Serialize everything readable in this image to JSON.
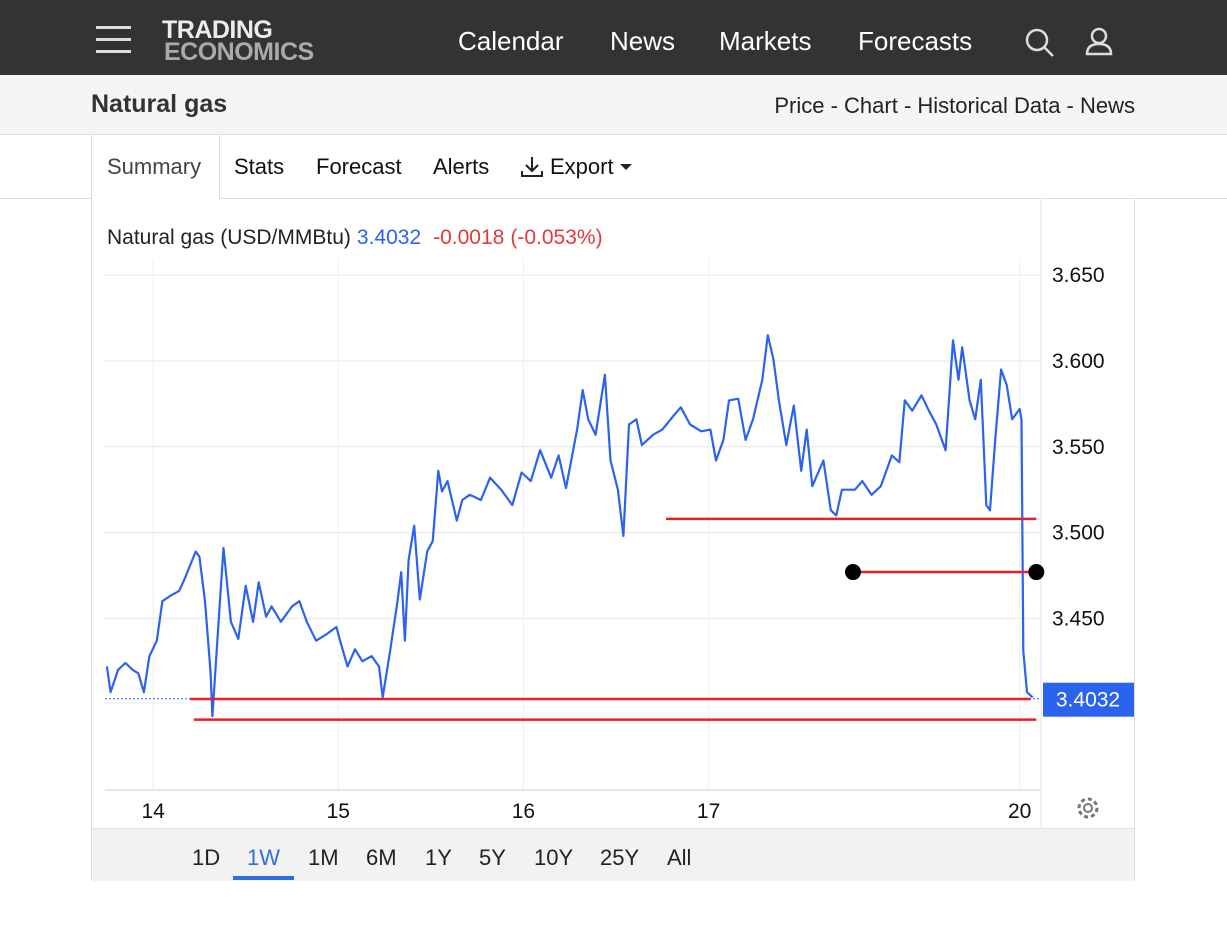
{
  "nav": {
    "logo": [
      "TRADING",
      "ECONOMICS"
    ],
    "links": [
      "Calendar",
      "News",
      "Markets",
      "Forecasts"
    ]
  },
  "header": {
    "title": "Natural gas",
    "links": "Price - Chart - Historical Data - News"
  },
  "tabs": [
    "Summary",
    "Stats",
    "Forecast",
    "Alerts",
    "Export"
  ],
  "ranges": [
    "1D",
    "1W",
    "1M",
    "6M",
    "1Y",
    "5Y",
    "10Y",
    "25Y",
    "All"
  ],
  "selected_range": "1W",
  "chart_data": {
    "type": "line",
    "title": "Natural gas (USD/MMBtu)",
    "last": 3.4032,
    "change": -0.0018,
    "change_pct": "(-0.053%)",
    "color": "#2b62ee",
    "change_color": "#e5383b",
    "xlim": [
      -0.26,
      4.79
    ],
    "ylim": [
      3.35,
      3.66
    ],
    "xticks": [
      {
        "value": 0,
        "label": "14"
      },
      {
        "value": 1,
        "label": "15"
      },
      {
        "value": 2,
        "label": "16"
      },
      {
        "value": 3,
        "label": "17"
      },
      {
        "value": 4.68,
        "label": "20"
      }
    ],
    "yticks": [
      {
        "value": 3.45,
        "label": "3.450"
      },
      {
        "value": 3.5,
        "label": "3.500"
      },
      {
        "value": 3.55,
        "label": "3.550"
      },
      {
        "value": 3.6,
        "label": "3.600"
      },
      {
        "value": 3.65,
        "label": "3.650"
      }
    ],
    "grid": true,
    "x": [
      -0.25,
      -0.23,
      -0.19,
      -0.15,
      -0.11,
      -0.08,
      -0.05,
      -0.02,
      0.02,
      0.05,
      0.09,
      0.14,
      0.17,
      0.23,
      0.25,
      0.28,
      0.31,
      0.32,
      0.35,
      0.38,
      0.42,
      0.46,
      0.5,
      0.54,
      0.57,
      0.61,
      0.64,
      0.69,
      0.75,
      0.79,
      0.83,
      0.88,
      0.94,
      0.99,
      1.01,
      1.05,
      1.09,
      1.13,
      1.18,
      1.22,
      1.24,
      1.28,
      1.32,
      1.34,
      1.36,
      1.38,
      1.41,
      1.44,
      1.48,
      1.51,
      1.54,
      1.56,
      1.59,
      1.64,
      1.67,
      1.71,
      1.77,
      1.82,
      1.88,
      1.94,
      1.99,
      2.04,
      2.09,
      2.15,
      2.19,
      2.23,
      2.29,
      2.32,
      2.35,
      2.39,
      2.44,
      2.47,
      2.51,
      2.54,
      2.57,
      2.61,
      2.64,
      2.7,
      2.75,
      2.81,
      2.85,
      2.9,
      2.96,
      3.01,
      3.04,
      3.08,
      3.11,
      3.16,
      3.2,
      3.24,
      3.29,
      3.32,
      3.35,
      3.38,
      3.42,
      3.46,
      3.5,
      3.53,
      3.56,
      3.62,
      3.66,
      3.69,
      3.72,
      3.79,
      3.83,
      3.88,
      3.93,
      3.99,
      4.03,
      4.06,
      4.1,
      4.15,
      4.19,
      4.23,
      4.28,
      4.32,
      4.35,
      4.37,
      4.41,
      4.44,
      4.47,
      4.5,
      4.52,
      4.55,
      4.58,
      4.61,
      4.64,
      4.68,
      4.69,
      4.7,
      4.72,
      4.75
    ],
    "values": [
      3.422,
      3.407,
      3.42,
      3.424,
      3.42,
      3.418,
      3.407,
      3.428,
      3.437,
      3.46,
      3.463,
      3.466,
      3.473,
      3.489,
      3.486,
      3.46,
      3.419,
      3.393,
      3.442,
      3.491,
      3.448,
      3.438,
      3.469,
      3.448,
      3.471,
      3.451,
      3.457,
      3.448,
      3.457,
      3.46,
      3.448,
      3.437,
      3.441,
      3.445,
      3.437,
      3.422,
      3.432,
      3.425,
      3.428,
      3.422,
      3.404,
      3.431,
      3.46,
      3.477,
      3.437,
      3.484,
      3.504,
      3.461,
      3.489,
      3.495,
      3.536,
      3.524,
      3.53,
      3.507,
      3.519,
      3.522,
      3.519,
      3.532,
      3.525,
      3.516,
      3.535,
      3.53,
      3.548,
      3.532,
      3.545,
      3.526,
      3.56,
      3.583,
      3.566,
      3.557,
      3.592,
      3.542,
      3.525,
      3.498,
      3.563,
      3.566,
      3.551,
      3.557,
      3.56,
      3.568,
      3.573,
      3.563,
      3.559,
      3.56,
      3.542,
      3.554,
      3.577,
      3.578,
      3.554,
      3.566,
      3.589,
      3.615,
      3.601,
      3.577,
      3.551,
      3.574,
      3.536,
      3.56,
      3.527,
      3.542,
      3.513,
      3.51,
      3.525,
      3.525,
      3.53,
      3.522,
      3.527,
      3.545,
      3.541,
      3.577,
      3.571,
      3.58,
      3.571,
      3.563,
      3.548,
      3.612,
      3.589,
      3.608,
      3.577,
      3.566,
      3.589,
      3.516,
      3.513,
      3.557,
      3.595,
      3.586,
      3.566,
      3.572,
      3.566,
      3.431,
      3.407,
      3.404
    ],
    "drawings": [
      {
        "y": 3.508,
        "x": [
          2.77,
          4.77
        ],
        "color": "#e8202a"
      },
      {
        "y": 3.477,
        "x": [
          3.78,
          4.77
        ],
        "color": "#e8202a",
        "marker_color": "#000000"
      },
      {
        "y": 3.403,
        "x": [
          0.2,
          4.74
        ],
        "color": "#e8202a"
      },
      {
        "y": 3.391,
        "x": [
          0.22,
          4.77
        ],
        "color": "#e8202a"
      }
    ]
  }
}
